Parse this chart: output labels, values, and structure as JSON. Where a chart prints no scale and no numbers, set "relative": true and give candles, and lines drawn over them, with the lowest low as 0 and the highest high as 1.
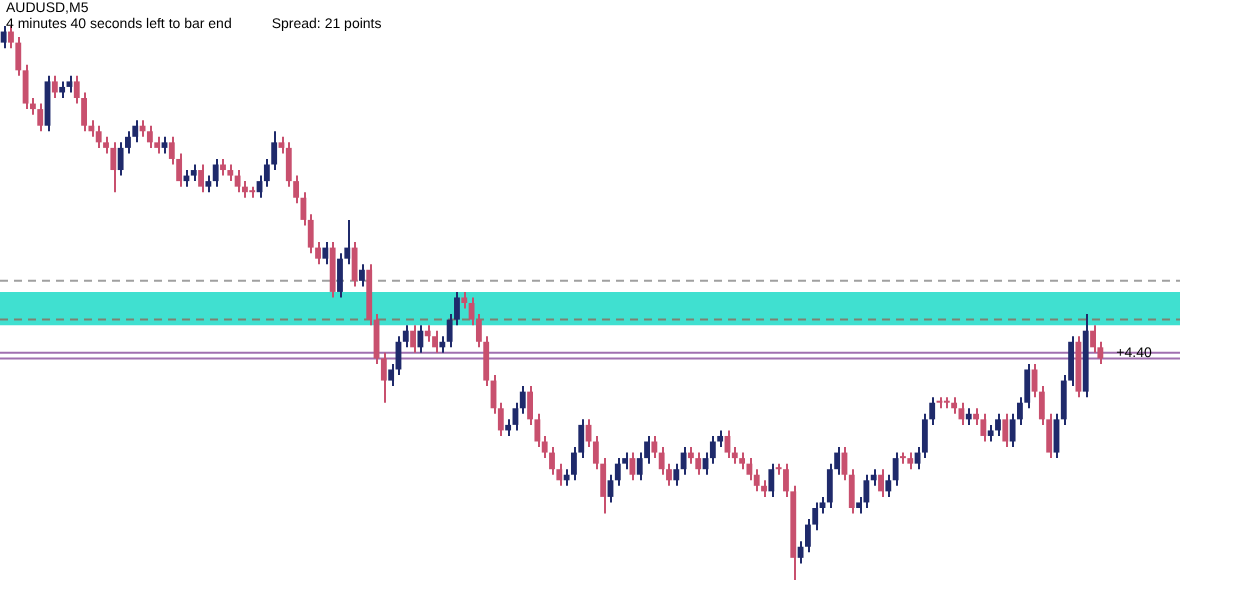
{
  "chart_data": {
    "type": "candlestick",
    "relative": true,
    "tick_labels": false,
    "legend": false,
    "annotations": [
      "AUDUSD,M5",
      "4 minutes 40 seconds left to bar end",
      "Spread: 21 points",
      {
        "text": "+4.40",
        "y": 0.41
      }
    ],
    "categories": [
      null,
      null,
      null,
      null,
      null,
      null,
      null,
      null,
      null,
      null,
      null,
      null,
      null,
      null,
      null,
      null,
      null,
      null,
      null,
      null,
      null,
      null,
      null,
      null,
      null,
      null,
      null,
      null,
      null,
      null,
      null,
      null,
      null,
      null,
      null,
      null,
      null,
      null,
      null,
      null,
      null,
      null,
      null,
      null,
      null,
      null,
      null,
      null,
      null,
      null,
      null,
      null,
      null,
      null,
      null,
      null,
      null,
      null,
      null,
      null,
      null,
      null,
      null,
      null,
      null,
      null,
      null,
      null,
      null,
      null,
      null,
      null,
      null,
      null,
      null,
      null,
      null,
      null,
      null,
      null,
      null,
      null,
      null,
      null,
      null,
      null,
      null,
      null,
      null,
      null,
      null,
      null,
      null,
      null,
      null,
      null,
      null,
      null,
      null,
      null,
      null,
      null,
      null,
      null,
      null,
      null,
      null,
      null,
      null,
      null,
      null,
      null,
      null,
      null,
      null,
      null,
      null,
      null,
      null,
      null,
      null,
      null,
      null,
      null,
      null,
      null,
      null,
      null,
      null,
      null,
      null,
      null,
      null,
      null,
      null,
      null,
      null,
      null,
      null,
      null,
      null,
      null,
      null,
      null,
      null,
      null,
      null,
      null,
      null,
      null,
      null
    ],
    "ohlc": [
      [
        0.97,
        1.0,
        0.96,
        0.99
      ],
      [
        0.99,
        1.0,
        0.96,
        0.97
      ],
      [
        0.97,
        0.98,
        0.91,
        0.92
      ],
      [
        0.92,
        0.93,
        0.85,
        0.86
      ],
      [
        0.86,
        0.87,
        0.84,
        0.85
      ],
      [
        0.85,
        0.86,
        0.81,
        0.82
      ],
      [
        0.82,
        0.91,
        0.81,
        0.9
      ],
      [
        0.9,
        0.91,
        0.87,
        0.88
      ],
      [
        0.88,
        0.9,
        0.87,
        0.89
      ],
      [
        0.89,
        0.91,
        0.88,
        0.9
      ],
      [
        0.9,
        0.91,
        0.86,
        0.87
      ],
      [
        0.87,
        0.88,
        0.81,
        0.82
      ],
      [
        0.82,
        0.83,
        0.8,
        0.81
      ],
      [
        0.81,
        0.82,
        0.78,
        0.79
      ],
      [
        0.79,
        0.8,
        0.77,
        0.78
      ],
      [
        0.78,
        0.79,
        0.7,
        0.74
      ],
      [
        0.74,
        0.79,
        0.73,
        0.78
      ],
      [
        0.78,
        0.81,
        0.77,
        0.8
      ],
      [
        0.8,
        0.83,
        0.79,
        0.82
      ],
      [
        0.82,
        0.83,
        0.8,
        0.81
      ],
      [
        0.81,
        0.82,
        0.78,
        0.79
      ],
      [
        0.79,
        0.8,
        0.77,
        0.78
      ],
      [
        0.78,
        0.8,
        0.77,
        0.79
      ],
      [
        0.79,
        0.8,
        0.75,
        0.76
      ],
      [
        0.76,
        0.77,
        0.71,
        0.72
      ],
      [
        0.72,
        0.74,
        0.71,
        0.73
      ],
      [
        0.73,
        0.75,
        0.72,
        0.74
      ],
      [
        0.74,
        0.75,
        0.7,
        0.71
      ],
      [
        0.71,
        0.73,
        0.7,
        0.72
      ],
      [
        0.72,
        0.76,
        0.71,
        0.75
      ],
      [
        0.75,
        0.76,
        0.73,
        0.74
      ],
      [
        0.74,
        0.75,
        0.72,
        0.73
      ],
      [
        0.73,
        0.74,
        0.7,
        0.71
      ],
      [
        0.71,
        0.72,
        0.69,
        0.7
      ],
      [
        0.7,
        0.71,
        0.69,
        0.7
      ],
      [
        0.7,
        0.73,
        0.69,
        0.72
      ],
      [
        0.72,
        0.76,
        0.71,
        0.75
      ],
      [
        0.75,
        0.81,
        0.74,
        0.79
      ],
      [
        0.79,
        0.8,
        0.77,
        0.78
      ],
      [
        0.78,
        0.79,
        0.71,
        0.72
      ],
      [
        0.72,
        0.73,
        0.68,
        0.69
      ],
      [
        0.69,
        0.7,
        0.64,
        0.65
      ],
      [
        0.65,
        0.66,
        0.59,
        0.6
      ],
      [
        0.6,
        0.61,
        0.57,
        0.58
      ],
      [
        0.58,
        0.61,
        0.57,
        0.6
      ],
      [
        0.6,
        0.61,
        0.51,
        0.52
      ],
      [
        0.52,
        0.59,
        0.51,
        0.58
      ],
      [
        0.58,
        0.65,
        0.57,
        0.6
      ],
      [
        0.6,
        0.61,
        0.53,
        0.54
      ],
      [
        0.54,
        0.57,
        0.53,
        0.56
      ],
      [
        0.56,
        0.57,
        0.46,
        0.47
      ],
      [
        0.47,
        0.48,
        0.39,
        0.4
      ],
      [
        0.4,
        0.41,
        0.32,
        0.36
      ],
      [
        0.36,
        0.39,
        0.35,
        0.38
      ],
      [
        0.38,
        0.44,
        0.37,
        0.43
      ],
      [
        0.43,
        0.46,
        0.42,
        0.45
      ],
      [
        0.45,
        0.46,
        0.41,
        0.42
      ],
      [
        0.42,
        0.46,
        0.41,
        0.45
      ],
      [
        0.45,
        0.46,
        0.43,
        0.44
      ],
      [
        0.44,
        0.45,
        0.41,
        0.42
      ],
      [
        0.42,
        0.44,
        0.41,
        0.43
      ],
      [
        0.43,
        0.48,
        0.42,
        0.47
      ],
      [
        0.47,
        0.52,
        0.46,
        0.51
      ],
      [
        0.51,
        0.52,
        0.49,
        0.5
      ],
      [
        0.5,
        0.51,
        0.46,
        0.47
      ],
      [
        0.47,
        0.48,
        0.42,
        0.43
      ],
      [
        0.43,
        0.44,
        0.35,
        0.36
      ],
      [
        0.36,
        0.37,
        0.3,
        0.31
      ],
      [
        0.31,
        0.32,
        0.26,
        0.27
      ],
      [
        0.27,
        0.29,
        0.26,
        0.28
      ],
      [
        0.28,
        0.32,
        0.27,
        0.31
      ],
      [
        0.31,
        0.35,
        0.3,
        0.34
      ],
      [
        0.34,
        0.35,
        0.28,
        0.29
      ],
      [
        0.29,
        0.3,
        0.24,
        0.25
      ],
      [
        0.25,
        0.26,
        0.22,
        0.23
      ],
      [
        0.23,
        0.24,
        0.19,
        0.2
      ],
      [
        0.2,
        0.21,
        0.17,
        0.18
      ],
      [
        0.18,
        0.2,
        0.17,
        0.19
      ],
      [
        0.19,
        0.24,
        0.18,
        0.23
      ],
      [
        0.23,
        0.29,
        0.22,
        0.28
      ],
      [
        0.28,
        0.29,
        0.24,
        0.25
      ],
      [
        0.25,
        0.26,
        0.2,
        0.21
      ],
      [
        0.21,
        0.22,
        0.12,
        0.15
      ],
      [
        0.15,
        0.19,
        0.14,
        0.18
      ],
      [
        0.18,
        0.22,
        0.17,
        0.21
      ],
      [
        0.21,
        0.23,
        0.2,
        0.22
      ],
      [
        0.22,
        0.23,
        0.18,
        0.19
      ],
      [
        0.19,
        0.23,
        0.18,
        0.22
      ],
      [
        0.22,
        0.26,
        0.21,
        0.25
      ],
      [
        0.25,
        0.26,
        0.22,
        0.23
      ],
      [
        0.23,
        0.24,
        0.19,
        0.2
      ],
      [
        0.2,
        0.21,
        0.17,
        0.18
      ],
      [
        0.18,
        0.21,
        0.17,
        0.2
      ],
      [
        0.2,
        0.24,
        0.19,
        0.23
      ],
      [
        0.23,
        0.24,
        0.21,
        0.22
      ],
      [
        0.22,
        0.23,
        0.19,
        0.2
      ],
      [
        0.2,
        0.23,
        0.19,
        0.22
      ],
      [
        0.22,
        0.26,
        0.21,
        0.25
      ],
      [
        0.25,
        0.27,
        0.24,
        0.26
      ],
      [
        0.26,
        0.27,
        0.22,
        0.23
      ],
      [
        0.23,
        0.24,
        0.21,
        0.22
      ],
      [
        0.22,
        0.23,
        0.2,
        0.21
      ],
      [
        0.21,
        0.22,
        0.18,
        0.19
      ],
      [
        0.19,
        0.2,
        0.16,
        0.17
      ],
      [
        0.17,
        0.18,
        0.15,
        0.16
      ],
      [
        0.16,
        0.21,
        0.15,
        0.2
      ],
      [
        0.2,
        0.21,
        0.19,
        0.2
      ],
      [
        0.2,
        0.21,
        0.15,
        0.16
      ],
      [
        0.16,
        0.17,
        0,
        0.04
      ],
      [
        0.04,
        0.07,
        0.03,
        0.06
      ],
      [
        0.06,
        0.11,
        0.05,
        0.1
      ],
      [
        0.1,
        0.14,
        0.09,
        0.13
      ],
      [
        0.13,
        0.15,
        0.12,
        0.14
      ],
      [
        0.14,
        0.21,
        0.13,
        0.2
      ],
      [
        0.2,
        0.24,
        0.19,
        0.23
      ],
      [
        0.23,
        0.24,
        0.18,
        0.19
      ],
      [
        0.19,
        0.2,
        0.12,
        0.13
      ],
      [
        0.13,
        0.15,
        0.12,
        0.14
      ],
      [
        0.14,
        0.19,
        0.13,
        0.18
      ],
      [
        0.18,
        0.2,
        0.17,
        0.19
      ],
      [
        0.19,
        0.2,
        0.15,
        0.16
      ],
      [
        0.16,
        0.19,
        0.15,
        0.18
      ],
      [
        0.18,
        0.23,
        0.17,
        0.22
      ],
      [
        0.22,
        0.23,
        0.21,
        0.22
      ],
      [
        0.22,
        0.23,
        0.2,
        0.21
      ],
      [
        0.21,
        0.24,
        0.2,
        0.23
      ],
      [
        0.23,
        0.3,
        0.22,
        0.29
      ],
      [
        0.29,
        0.33,
        0.28,
        0.32
      ],
      [
        0.32,
        0.33,
        0.31,
        0.32
      ],
      [
        0.32,
        0.33,
        0.31,
        0.32
      ],
      [
        0.32,
        0.33,
        0.3,
        0.31
      ],
      [
        0.31,
        0.32,
        0.28,
        0.29
      ],
      [
        0.29,
        0.31,
        0.28,
        0.3
      ],
      [
        0.3,
        0.31,
        0.28,
        0.29
      ],
      [
        0.29,
        0.3,
        0.25,
        0.26
      ],
      [
        0.26,
        0.28,
        0.25,
        0.27
      ],
      [
        0.27,
        0.3,
        0.26,
        0.29
      ],
      [
        0.29,
        0.3,
        0.24,
        0.25
      ],
      [
        0.25,
        0.3,
        0.24,
        0.29
      ],
      [
        0.29,
        0.33,
        0.28,
        0.32
      ],
      [
        0.32,
        0.39,
        0.31,
        0.38
      ],
      [
        0.38,
        0.39,
        0.33,
        0.34
      ],
      [
        0.34,
        0.35,
        0.28,
        0.29
      ],
      [
        0.29,
        0.3,
        0.22,
        0.23
      ],
      [
        0.23,
        0.3,
        0.22,
        0.29
      ],
      [
        0.29,
        0.37,
        0.28,
        0.36
      ],
      [
        0.36,
        0.44,
        0.35,
        0.43
      ],
      [
        0.43,
        0.44,
        0.33,
        0.34
      ],
      [
        0.34,
        0.48,
        0.33,
        0.45
      ],
      [
        0.45,
        0.46,
        0.41,
        0.42
      ],
      [
        0.42,
        0.43,
        0.39,
        0.4
      ]
    ],
    "colors": [
      "#1f2a6b",
      "#c8506e",
      "#c8506e",
      "#c8506e",
      "#c8506e",
      "#c8506e",
      "#1f2a6b",
      "#c8506e",
      "#1f2a6b",
      "#1f2a6b",
      "#c8506e",
      "#c8506e",
      "#c8506e",
      "#c8506e",
      "#c8506e",
      "#c8506e",
      "#1f2a6b",
      "#1f2a6b",
      "#1f2a6b",
      "#c8506e",
      "#c8506e",
      "#c8506e",
      "#1f2a6b",
      "#c8506e",
      "#c8506e",
      "#1f2a6b",
      "#1f2a6b",
      "#c8506e",
      "#1f2a6b",
      "#1f2a6b",
      "#c8506e",
      "#c8506e",
      "#c8506e",
      "#c8506e",
      "#c8506e",
      "#1f2a6b",
      "#1f2a6b",
      "#1f2a6b",
      "#c8506e",
      "#c8506e",
      "#c8506e",
      "#c8506e",
      "#c8506e",
      "#c8506e",
      "#1f2a6b",
      "#c8506e",
      "#1f2a6b",
      "#1f2a6b",
      "#c8506e",
      "#1f2a6b",
      "#c8506e",
      "#c8506e",
      "#c8506e",
      "#1f2a6b",
      "#1f2a6b",
      "#1f2a6b",
      "#c8506e",
      "#1f2a6b",
      "#c8506e",
      "#c8506e",
      "#1f2a6b",
      "#1f2a6b",
      "#1f2a6b",
      "#c8506e",
      "#c8506e",
      "#c8506e",
      "#c8506e",
      "#c8506e",
      "#c8506e",
      "#1f2a6b",
      "#1f2a6b",
      "#1f2a6b",
      "#c8506e",
      "#c8506e",
      "#c8506e",
      "#c8506e",
      "#c8506e",
      "#1f2a6b",
      "#1f2a6b",
      "#1f2a6b",
      "#c8506e",
      "#c8506e",
      "#c8506e",
      "#1f2a6b",
      "#1f2a6b",
      "#1f2a6b",
      "#c8506e",
      "#1f2a6b",
      "#1f2a6b",
      "#c8506e",
      "#c8506e",
      "#c8506e",
      "#1f2a6b",
      "#1f2a6b",
      "#c8506e",
      "#c8506e",
      "#1f2a6b",
      "#1f2a6b",
      "#1f2a6b",
      "#c8506e",
      "#c8506e",
      "#c8506e",
      "#c8506e",
      "#c8506e",
      "#c8506e",
      "#1f2a6b",
      "#c8506e",
      "#c8506e",
      "#c8506e",
      "#1f2a6b",
      "#1f2a6b",
      "#1f2a6b",
      "#1f2a6b",
      "#1f2a6b",
      "#1f2a6b",
      "#c8506e",
      "#c8506e",
      "#1f2a6b",
      "#1f2a6b",
      "#1f2a6b",
      "#c8506e",
      "#1f2a6b",
      "#1f2a6b",
      "#c8506e",
      "#c8506e",
      "#1f2a6b",
      "#1f2a6b",
      "#1f2a6b",
      "#c8506e",
      "#c8506e",
      "#c8506e",
      "#c8506e",
      "#1f2a6b",
      "#c8506e",
      "#c8506e",
      "#1f2a6b",
      "#1f2a6b",
      "#c8506e",
      "#1f2a6b",
      "#1f2a6b",
      "#1f2a6b",
      "#c8506e",
      "#c8506e",
      "#c8506e",
      "#1f2a6b",
      "#1f2a6b",
      "#1f2a6b",
      "#c8506e",
      "#1f2a6b",
      "#c8506e",
      "#c8506e"
    ],
    "ref_lines": [
      {
        "axis": "y",
        "value": 0.54,
        "color": "#a0a0a0",
        "line_style": "dashed"
      },
      {
        "axis": "y",
        "value": 0.47,
        "color": "#808070",
        "line_style": "dashed"
      },
      {
        "axis": "y",
        "value": 0.41,
        "color": "#a070b0"
      },
      {
        "axis": "y",
        "value": 0.4,
        "color": "#a070b0"
      }
    ],
    "bands": [
      {
        "axis": "y",
        "from": 0.46,
        "to": 0.52,
        "color": "#40e0d0"
      }
    ]
  }
}
